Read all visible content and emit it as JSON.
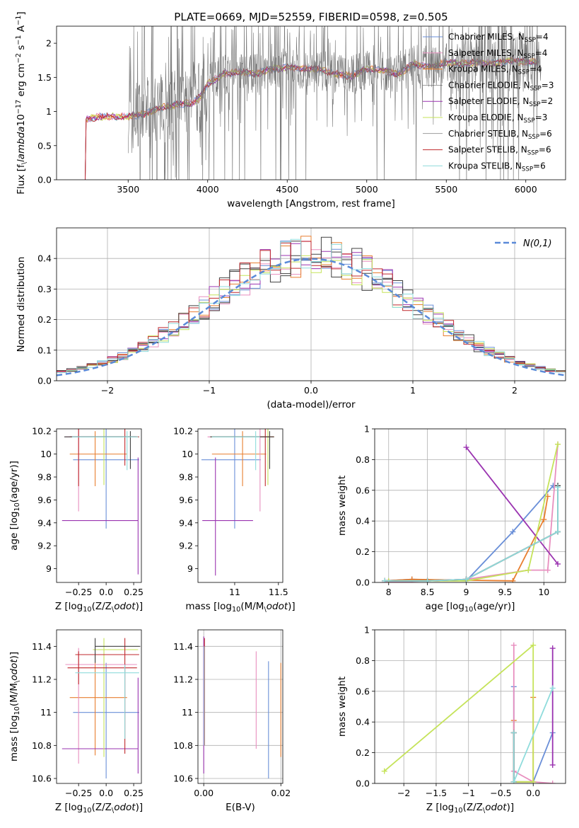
{
  "chart_data": [
    {
      "id": "spectrum",
      "type": "line",
      "title": "PLATE=0669, MJD=52559, FIBERID=0598, z=0.505",
      "xlabel": "wavelength [Angstrom, rest frame]",
      "ylabel": "Flux [f$_\\lambda$10$^{-17}$ erg cm$^{-2}$ s$^{-1}$ A$^{-1}$]",
      "xlim": [
        3050,
        6250
      ],
      "ylim": [
        0,
        2.25
      ],
      "xticks": [
        3500,
        4000,
        4500,
        5000,
        5500,
        6000
      ],
      "yticks": [
        0.0,
        0.5,
        1.0,
        1.5,
        2.0
      ],
      "grid": false,
      "legend_position": "top-right",
      "legend": [
        {
          "name": "Chabrier MILES, N$_{SSP}$=4",
          "color": "#6a8fd8",
          "lw": 1
        },
        {
          "name": "Salpeter MILES, N$_{SSP}$=4",
          "color": "#e88fbf",
          "lw": 1
        },
        {
          "name": "Kroupa MILES, N$_{SSP}$=4",
          "color": "#e87f30",
          "lw": 1
        },
        {
          "name": "Chabrier ELODIE, N$_{SSP}$=3",
          "color": "#404040",
          "lw": 0.5
        },
        {
          "name": "Salpeter ELODIE, N$_{SSP}$=2",
          "color": "#9a33b0",
          "lw": 1
        },
        {
          "name": "Kroupa ELODIE, N$_{SSP}$=3",
          "color": "#c5e35a",
          "lw": 1
        },
        {
          "name": "Chabrier STELIB, N$_{SSP}$=6",
          "color": "#404040",
          "lw": 0.5
        },
        {
          "name": "Salpeter STELIB, N$_{SSP}$=6",
          "color": "#c0282d",
          "lw": 1
        },
        {
          "name": "Kroupa STELIB, N$_{SSP}$=6",
          "color": "#8fdcdc",
          "lw": 1
        }
      ],
      "model_trend": [
        [
          3230,
          0
        ],
        [
          3235,
          0.88
        ],
        [
          3300,
          0.92
        ],
        [
          3500,
          0.93
        ],
        [
          3600,
          0.96
        ],
        [
          3700,
          1.05
        ],
        [
          3800,
          1.1
        ],
        [
          3900,
          1.12
        ],
        [
          3950,
          1.2
        ],
        [
          4000,
          1.4
        ],
        [
          4100,
          1.55
        ],
        [
          4200,
          1.58
        ],
        [
          4300,
          1.55
        ],
        [
          4400,
          1.62
        ],
        [
          4500,
          1.65
        ],
        [
          4600,
          1.63
        ],
        [
          4700,
          1.62
        ],
        [
          4800,
          1.55
        ],
        [
          4900,
          1.52
        ],
        [
          5000,
          1.62
        ],
        [
          5100,
          1.6
        ],
        [
          5200,
          1.55
        ],
        [
          5300,
          1.7
        ],
        [
          5400,
          1.65
        ],
        [
          5500,
          1.72
        ],
        [
          5600,
          1.7
        ],
        [
          5700,
          1.72
        ],
        [
          5800,
          1.7
        ],
        [
          5900,
          1.75
        ],
        [
          6000,
          1.72
        ],
        [
          6080,
          1.73
        ]
      ],
      "data_range": [
        3500,
        6100
      ]
    },
    {
      "id": "residuals",
      "type": "histogram",
      "xlabel": "(data-model)/error",
      "ylabel": "Normed distribution",
      "xlim": [
        -2.5,
        2.5
      ],
      "ylim": [
        0,
        0.5
      ],
      "xticks": [
        -2,
        -1,
        0,
        1,
        2
      ],
      "yticks": [
        0.0,
        0.1,
        0.2,
        0.3,
        0.4
      ],
      "grid": true,
      "legend_position": "top-right",
      "normal_curve": {
        "label": "$\\mathcal{N}(0,1)$",
        "color": "#5a8ad8",
        "dash": true,
        "mean": 0,
        "sigma": 1
      },
      "bin_width": 0.1,
      "bins_start": -2.5
    },
    {
      "id": "age-vs-Z",
      "type": "errorbar",
      "xlabel": "Z [log$_{10}$(Z/Z$_\\odot$)]",
      "ylabel": "age  [log$_{10}$(age/yr)]",
      "xlim": [
        -0.45,
        0.32
      ],
      "ylim": [
        8.88,
        10.22
      ],
      "xticks": [
        -0.25,
        0.0,
        0.25
      ],
      "yticks": [
        9.0,
        9.2,
        9.4,
        9.6,
        9.8,
        10.0,
        10.2
      ],
      "grid": false,
      "points": [
        {
          "x": 0.0,
          "y": 9.95,
          "xerr": [
            0.3,
            0.3
          ],
          "yerr": [
            0.6,
            0.27
          ],
          "color": "#6a8fd8"
        },
        {
          "x": -0.1,
          "y": 10.0,
          "xerr": [
            0.23,
            0.29
          ],
          "yerr": [
            0.28,
            0.2
          ],
          "color": "#e87f30"
        },
        {
          "x": -0.25,
          "y": 10.15,
          "xerr": [
            0.12,
            0.53
          ],
          "yerr": [
            0.65,
            0.07
          ],
          "color": "#e88fbf"
        },
        {
          "x": 0.29,
          "y": 9.42,
          "xerr": [
            0.69,
            0.0
          ],
          "yerr": [
            0.47,
            0.55
          ],
          "color": "#9a33b0"
        },
        {
          "x": -0.02,
          "y": 10.15,
          "xerr": [
            0.1,
            0.31
          ],
          "yerr": [
            0.42,
            0.07
          ],
          "color": "#c5e35a"
        },
        {
          "x": -0.25,
          "y": 10.15,
          "xerr": [
            0.08,
            0.53
          ],
          "yerr": [
            0.43,
            0.07
          ],
          "color": "#c0282d"
        },
        {
          "x": 0.17,
          "y": 10.15,
          "xerr": [
            0.45,
            0.13
          ],
          "yerr": [
            0.25,
            0.07
          ],
          "color": "#c0282d"
        },
        {
          "x": 0.22,
          "y": 10.15,
          "xerr": [
            0.6,
            0.05
          ],
          "yerr": [
            0.28,
            0.05
          ],
          "color": "#404040"
        },
        {
          "x": 0.19,
          "y": 10.15,
          "xerr": [
            0.5,
            0.1
          ],
          "yerr": [
            0.29,
            0.05
          ],
          "color": "#8fdcdc"
        }
      ]
    },
    {
      "id": "age-vs-mass",
      "type": "errorbar",
      "xlabel": "mass [log$_{10}$(M/M$_\\odot$)]",
      "ylabel": "",
      "xlim": [
        10.58,
        11.55
      ],
      "ylim": [
        8.88,
        10.22
      ],
      "xticks": [
        11.0,
        11.5
      ],
      "yticks": [
        9.0,
        9.2,
        9.4,
        9.6,
        9.8,
        10.0,
        10.2
      ],
      "grid": false,
      "points": [
        {
          "x": 11.0,
          "y": 9.95,
          "xerr": [
            0.38,
            0.3
          ],
          "yerr": [
            0.6,
            0.27
          ],
          "color": "#6a8fd8"
        },
        {
          "x": 11.09,
          "y": 10.0,
          "xerr": [
            0.35,
            0.27
          ],
          "yerr": [
            0.28,
            0.2
          ],
          "color": "#e87f30"
        },
        {
          "x": 11.29,
          "y": 10.15,
          "xerr": [
            0.6,
            0.1
          ],
          "yerr": [
            0.65,
            0.07
          ],
          "color": "#e88fbf"
        },
        {
          "x": 10.78,
          "y": 9.42,
          "xerr": [
            0.15,
            0.43
          ],
          "yerr": [
            0.48,
            0.55
          ],
          "color": "#9a33b0"
        },
        {
          "x": 11.38,
          "y": 10.15,
          "xerr": [
            0.65,
            0.07
          ],
          "yerr": [
            0.42,
            0.07
          ],
          "color": "#c5e35a"
        },
        {
          "x": 11.35,
          "y": 10.15,
          "xerr": [
            0.6,
            0.1
          ],
          "yerr": [
            0.43,
            0.07
          ],
          "color": "#c0282d"
        },
        {
          "x": 11.4,
          "y": 10.15,
          "xerr": [
            0.68,
            0.05
          ],
          "yerr": [
            0.28,
            0.05
          ],
          "color": "#404040"
        },
        {
          "x": 11.24,
          "y": 10.15,
          "xerr": [
            0.5,
            0.05
          ],
          "yerr": [
            0.29,
            0.05
          ],
          "color": "#8fdcdc"
        }
      ]
    },
    {
      "id": "weight-vs-age",
      "type": "line",
      "xlabel": "age  [log$_{10}$(age/yr)]",
      "ylabel": "mass weight",
      "xlim": [
        7.82,
        10.28
      ],
      "ylim": [
        0,
        1.0
      ],
      "xticks": [
        8.0,
        8.5,
        9.0,
        9.5,
        10.0
      ],
      "yticks": [
        0.0,
        0.2,
        0.4,
        0.6,
        0.8,
        1.0
      ],
      "grid": true,
      "series": [
        {
          "color": "#6a8fd8",
          "x": [
            7.95,
            8.3,
            9.0,
            9.6,
            10.12
          ],
          "y": [
            0.01,
            0.02,
            0.01,
            0.33,
            0.63
          ]
        },
        {
          "color": "#e87f30",
          "x": [
            7.95,
            8.3,
            9.6,
            10.0,
            10.05
          ],
          "y": [
            0.01,
            0.02,
            0.01,
            0.41,
            0.56
          ]
        },
        {
          "color": "#e88fbf",
          "x": [
            7.95,
            9.0,
            9.8,
            10.05,
            10.18
          ],
          "y": [
            0.0,
            0.02,
            0.08,
            0.08,
            0.9
          ]
        },
        {
          "color": "#9a33b0",
          "x": [
            9.0,
            10.18
          ],
          "y": [
            0.88,
            0.12
          ]
        },
        {
          "color": "#c5e35a",
          "x": [
            8.0,
            9.0,
            9.8,
            10.18
          ],
          "y": [
            0.01,
            0.01,
            0.08,
            0.9
          ]
        },
        {
          "color": "#c0282d",
          "x": [
            7.95,
            8.5,
            9.0,
            10.18
          ],
          "y": [
            0.01,
            0.01,
            0.02,
            0.33
          ]
        },
        {
          "color": "#404040",
          "x": [
            7.95,
            8.5,
            9.0,
            10.18,
            10.18
          ],
          "y": [
            0.01,
            0.01,
            0.02,
            0.33,
            0.63
          ]
        },
        {
          "color": "#8fdcdc",
          "x": [
            7.95,
            8.5,
            9.0,
            10.18,
            10.18
          ],
          "y": [
            0.01,
            0.01,
            0.02,
            0.33,
            0.62
          ]
        }
      ]
    },
    {
      "id": "mass-vs-Z",
      "type": "errorbar",
      "xlabel": "Z [log$_{10}$(Z/Z$_\\odot$)]",
      "ylabel": "mass [log$_{10}$(M/M$_\\odot$)]",
      "xlim": [
        -0.45,
        0.32
      ],
      "ylim": [
        10.57,
        11.5
      ],
      "xticks": [
        -0.25,
        0.0,
        0.25
      ],
      "yticks": [
        10.6,
        10.8,
        11.0,
        11.2,
        11.4
      ],
      "grid": false,
      "points": [
        {
          "x": 0.0,
          "y": 11.0,
          "xerr": [
            0.3,
            0.3
          ],
          "yerr": [
            0.4,
            0.3
          ],
          "color": "#6a8fd8"
        },
        {
          "x": -0.1,
          "y": 11.09,
          "xerr": [
            0.23,
            0.29
          ],
          "yerr": [
            0.35,
            0.27
          ],
          "color": "#e87f30"
        },
        {
          "x": -0.25,
          "y": 11.29,
          "xerr": [
            0.12,
            0.53
          ],
          "yerr": [
            0.6,
            0.1
          ],
          "color": "#e88fbf"
        },
        {
          "x": 0.29,
          "y": 10.78,
          "xerr": [
            0.69,
            0.0
          ],
          "yerr": [
            0.15,
            0.43
          ],
          "color": "#9a33b0"
        },
        {
          "x": -0.02,
          "y": 11.38,
          "xerr": [
            0.1,
            0.31
          ],
          "yerr": [
            0.65,
            0.07
          ],
          "color": "#c5e35a"
        },
        {
          "x": 0.17,
          "y": 11.35,
          "xerr": [
            0.45,
            0.13
          ],
          "yerr": [
            0.6,
            0.1
          ],
          "color": "#c0282d"
        },
        {
          "x": -0.25,
          "y": 11.27,
          "xerr": [
            0.1,
            0.53
          ],
          "yerr": [
            0.1,
            0.1
          ],
          "color": "#c0282d"
        },
        {
          "x": -0.1,
          "y": 11.4,
          "xerr": [
            0.0,
            0.41
          ],
          "yerr": [
            0.1,
            0.05
          ],
          "color": "#404040"
        },
        {
          "x": 0.17,
          "y": 11.24,
          "xerr": [
            0.45,
            0.13
          ],
          "yerr": [
            0.4,
            0.05
          ],
          "color": "#8fdcdc"
        }
      ]
    },
    {
      "id": "mass-vs-ebv",
      "type": "errorbar",
      "xlabel": "E(B-V)",
      "ylabel": "",
      "xlim": [
        -0.0015,
        0.0205
      ],
      "ylim": [
        10.57,
        11.5
      ],
      "xticks": [
        0.0,
        0.02
      ],
      "xticklabels": [
        "0.00",
        "0.02"
      ],
      "yticks": [
        10.6,
        10.8,
        11.0,
        11.2,
        11.4
      ],
      "grid": true,
      "points": [
        {
          "x": 0.0,
          "y": 11.38,
          "yerr": [
            0.75,
            0.08
          ],
          "color": "#9a33b0"
        },
        {
          "x": 0.0002,
          "y": 11.35,
          "yerr": [
            0.55,
            0.1
          ],
          "color": "#c0282d"
        },
        {
          "x": 0.0001,
          "y": 11.3,
          "yerr": [
            0.5,
            0.1
          ],
          "color": "#8fdcdc"
        },
        {
          "x": 0.0136,
          "y": 11.05,
          "yerr": [
            0.27,
            0.32
          ],
          "color": "#e88fbf"
        },
        {
          "x": 0.0168,
          "y": 10.95,
          "yerr": [
            0.35,
            0.36
          ],
          "color": "#6a8fd8"
        },
        {
          "x": 0.02,
          "y": 11.0,
          "yerr": [
            0.27,
            0.3
          ],
          "color": "#e87f30"
        }
      ]
    },
    {
      "id": "weight-vs-Z",
      "type": "line",
      "xlabel": "Z [log$_{10}$(Z/Z$_\\odot$)]",
      "ylabel": "mass weight",
      "xlim": [
        -2.45,
        0.5
      ],
      "ylim": [
        0,
        1.0
      ],
      "xticks": [
        -2.0,
        -1.5,
        -1.0,
        -0.5,
        0.0
      ],
      "yticks": [
        0.0,
        0.2,
        0.4,
        0.6,
        0.8,
        1.0
      ],
      "grid": true,
      "series": [
        {
          "color": "#6a8fd8",
          "x": [
            -0.3,
            -0.3,
            0.0,
            0.3
          ],
          "y": [
            0.63,
            0.01,
            0.01,
            0.33
          ]
        },
        {
          "color": "#e87f30",
          "x": [
            -0.3,
            -0.3,
            0.0,
            0.0
          ],
          "y": [
            0.41,
            0.01,
            0.01,
            0.56
          ]
        },
        {
          "color": "#e88fbf",
          "x": [
            -0.3,
            -0.3,
            0.0,
            0.3
          ],
          "y": [
            0.9,
            0.08,
            0.01,
            0.0
          ]
        },
        {
          "color": "#9a33b0",
          "x": [
            0.3,
            0.3
          ],
          "y": [
            0.88,
            0.12
          ]
        },
        {
          "color": "#c5e35a",
          "x": [
            -2.3,
            0.0,
            0.0,
            -0.3
          ],
          "y": [
            0.08,
            0.9,
            0.01,
            0.01
          ]
        },
        {
          "color": "#c0282d",
          "x": [
            -0.3,
            -0.3
          ],
          "y": [
            0.33,
            0.01
          ]
        },
        {
          "color": "#404040",
          "x": [
            -0.3,
            -0.3
          ],
          "y": [
            0.33,
            0.01
          ]
        },
        {
          "color": "#8fdcdc",
          "x": [
            -0.3,
            -0.3,
            0.3
          ],
          "y": [
            0.33,
            0.01,
            0.62
          ]
        }
      ]
    }
  ]
}
